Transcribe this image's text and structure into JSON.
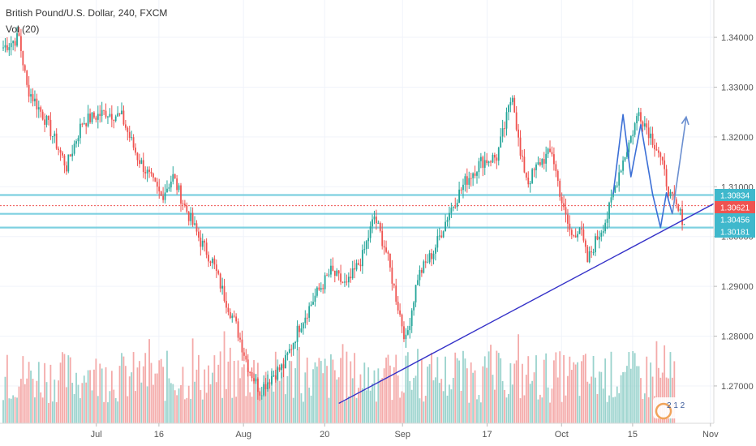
{
  "header": {
    "title": "British Pound/U.S. Dollar, 240, FXCM",
    "volume_label": "Vol (20)"
  },
  "colors": {
    "up": "#26a69a",
    "down": "#ef5350",
    "volume_up": "#9ad3cd",
    "volume_down": "#f4aaa9",
    "level_line": "#7ed0e0",
    "trend_line": "#3431c8",
    "projection": "#3b6fd6",
    "arrow": "#6b8fd0",
    "badge": "#3fb8cc",
    "current_badge": "#ef5350"
  },
  "watermark_icon": "tradingview-logo-icon",
  "chart_data": {
    "type": "candlestick",
    "symbol": "GBPUSD",
    "timeframe": "240",
    "ylim": [
      1.2625,
      1.3475
    ],
    "y_ticks": [
      "1.34000",
      "1.33000",
      "1.32000",
      "1.31000",
      "1.30000",
      "1.29000",
      "1.28000",
      "1.27000"
    ],
    "x_ticks": [
      "Jul",
      "16",
      "Aug",
      "20",
      "Sep",
      "17",
      "Oct",
      "15",
      "Nov"
    ],
    "bars": 160,
    "close_path": [
      [
        0,
        1.338
      ],
      [
        8,
        1.34
      ],
      [
        12,
        1.33
      ],
      [
        22,
        1.323
      ],
      [
        32,
        1.314
      ],
      [
        40,
        1.323
      ],
      [
        52,
        1.325
      ],
      [
        60,
        1.324
      ],
      [
        68,
        1.316
      ],
      [
        80,
        1.308
      ],
      [
        86,
        1.312
      ],
      [
        92,
        1.306
      ],
      [
        100,
        1.299
      ],
      [
        106,
        1.295
      ],
      [
        112,
        1.288
      ],
      [
        118,
        1.282
      ],
      [
        124,
        1.274
      ],
      [
        130,
        1.269
      ],
      [
        136,
        1.272
      ],
      [
        142,
        1.274
      ],
      [
        150,
        1.282
      ],
      [
        158,
        1.288
      ],
      [
        166,
        1.293
      ],
      [
        174,
        1.29
      ],
      [
        182,
        1.296
      ],
      [
        188,
        1.304
      ],
      [
        194,
        1.297
      ],
      [
        200,
        1.286
      ],
      [
        204,
        1.279
      ],
      [
        210,
        1.292
      ],
      [
        218,
        1.297
      ],
      [
        226,
        1.305
      ],
      [
        234,
        1.311
      ],
      [
        242,
        1.315
      ],
      [
        250,
        1.316
      ],
      [
        254,
        1.322
      ],
      [
        258,
        1.329
      ],
      [
        262,
        1.316
      ],
      [
        266,
        1.311
      ],
      [
        272,
        1.315
      ],
      [
        278,
        1.317
      ],
      [
        284,
        1.305
      ],
      [
        288,
        1.3
      ],
      [
        292,
        1.302
      ],
      [
        296,
        1.295
      ],
      [
        300,
        1.299
      ],
      [
        306,
        1.304
      ],
      [
        312,
        1.313
      ],
      [
        318,
        1.32
      ],
      [
        322,
        1.325
      ],
      [
        326,
        1.322
      ],
      [
        332,
        1.317
      ],
      [
        338,
        1.308
      ],
      [
        342,
        1.305
      ],
      [
        345,
        1.303
      ]
    ],
    "levels": [
      {
        "price": 1.30834,
        "label": "1.30834"
      },
      {
        "price": 1.30456,
        "label": "1.30456"
      },
      {
        "price": 1.30181,
        "label": "1.30181"
      }
    ],
    "current_price": {
      "price": 1.30621,
      "label": "1.30621"
    },
    "trend_line": {
      "from": [
        170,
        1.2665
      ],
      "to": [
        360,
        1.3066
      ]
    },
    "projection": {
      "points": [
        [
          309,
          1.3085
        ],
        [
          314,
          1.3245
        ],
        [
          318,
          1.312
        ],
        [
          323,
          1.3225
        ],
        [
          329,
          1.3085
        ],
        [
          333,
          1.3018
        ],
        [
          336,
          1.3088
        ],
        [
          339,
          1.3045
        ]
      ]
    },
    "arrow": {
      "from": [
        339,
        1.3045
      ],
      "to": [
        346,
        1.324
      ]
    }
  },
  "badge": {
    "label": "2 1 2"
  }
}
